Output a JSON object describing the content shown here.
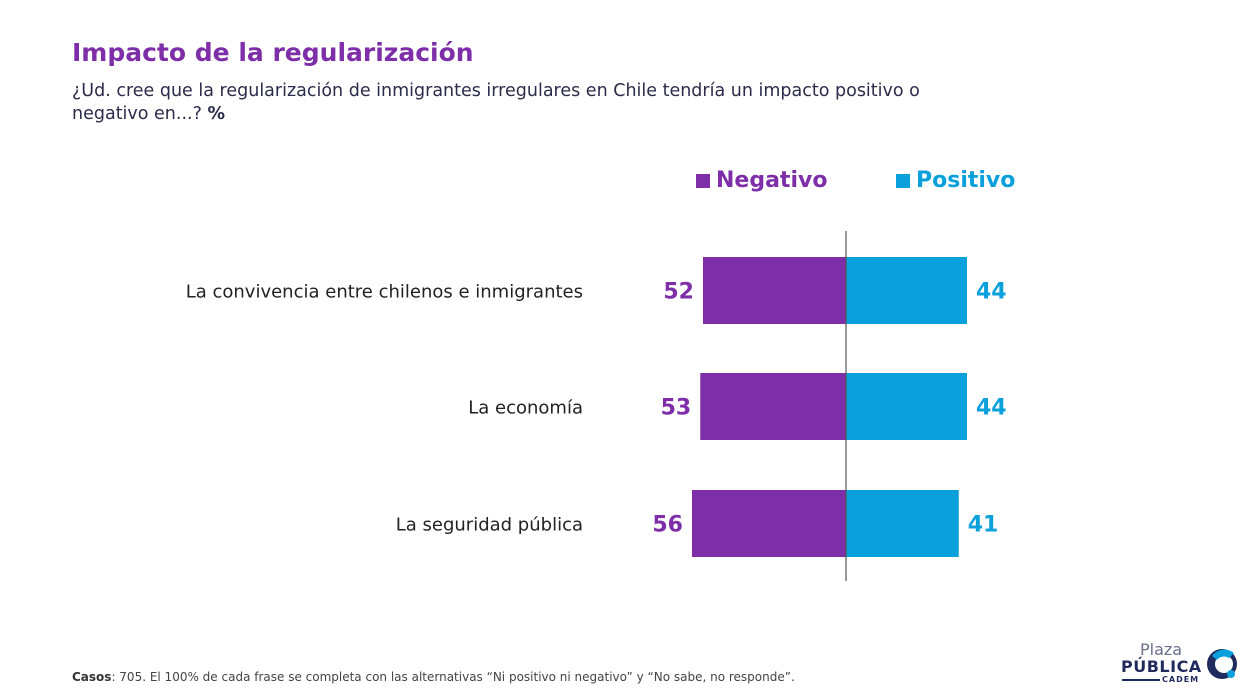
{
  "header": {
    "title": "Impacto de la regularización",
    "subtitle": "¿Ud. cree que la regularización de inmigrantes irregulares en Chile tendría un impacto positivo o negativo en...?",
    "unit": "%"
  },
  "legend": {
    "negative": "Negativo",
    "positive": "Positivo"
  },
  "colors": {
    "negative": "#7d2ea8",
    "positive": "#0aa0dc",
    "axis": "#555555",
    "category_text": "#222222"
  },
  "chart_data": {
    "type": "bar",
    "orientation": "horizontal-diverging",
    "categories": [
      "La convivencia entre chilenos e inmigrantes",
      "La economía",
      "La seguridad pública"
    ],
    "series": [
      {
        "name": "Negativo",
        "values": [
          52,
          53,
          56
        ]
      },
      {
        "name": "Positivo",
        "values": [
          44,
          44,
          41
        ]
      }
    ],
    "legend_position": "top",
    "grid": false
  },
  "footer": {
    "casos_label": "Casos",
    "note": ": 705. El 100% de cada frase se completa con las alternativas “Ni positivo ni negativo” y “No sabe, no responde”."
  },
  "logo": {
    "line1": "Plaza",
    "line2": "PÚBLICA",
    "line3": "CADEM"
  }
}
